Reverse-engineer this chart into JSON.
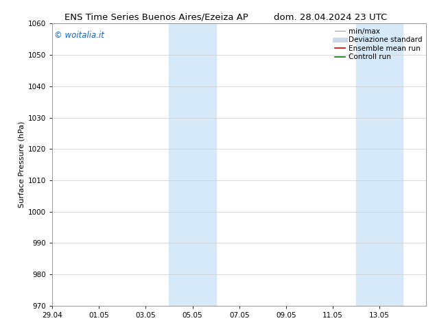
{
  "title_left": "ENS Time Series Buenos Aires/Ezeiza AP",
  "title_right": "dom. 28.04.2024 23 UTC",
  "ylabel": "Surface Pressure (hPa)",
  "ylim": [
    970,
    1060
  ],
  "yticks": [
    970,
    980,
    990,
    1000,
    1010,
    1020,
    1030,
    1040,
    1050,
    1060
  ],
  "xlim_start": 0,
  "xlim_end": 16,
  "xtick_labels": [
    "29.04",
    "01.05",
    "03.05",
    "05.05",
    "07.05",
    "09.05",
    "11.05",
    "13.05"
  ],
  "xtick_positions": [
    0,
    2,
    4,
    6,
    8,
    10,
    12,
    14
  ],
  "shaded_bands": [
    {
      "x_start": 5,
      "x_end": 7
    },
    {
      "x_start": 13,
      "x_end": 15
    }
  ],
  "shaded_color": "#d6e9f8",
  "background_color": "#ffffff",
  "watermark_text": "© woitalia.it",
  "watermark_color": "#1565c0",
  "legend_entries": [
    {
      "label": "min/max",
      "color": "#aaaaaa",
      "lw": 1.0,
      "style": "solid"
    },
    {
      "label": "Deviazione standard",
      "color": "#c8d8e8",
      "lw": 5,
      "style": "solid"
    },
    {
      "label": "Ensemble mean run",
      "color": "#cc0000",
      "lw": 1.2,
      "style": "solid"
    },
    {
      "label": "Controll run",
      "color": "#007700",
      "lw": 1.2,
      "style": "solid"
    }
  ],
  "title_fontsize": 9.5,
  "ylabel_fontsize": 8,
  "tick_fontsize": 7.5,
  "watermark_fontsize": 8.5,
  "legend_fontsize": 7.5,
  "grid_color": "#cccccc",
  "grid_lw": 0.5,
  "spine_color": "#888888"
}
